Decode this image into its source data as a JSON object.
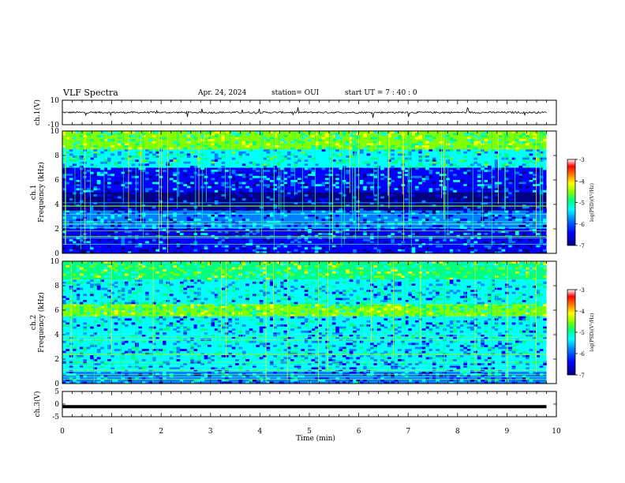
{
  "header": {
    "title": "VLF Spectra",
    "date": "Apr. 24, 2024",
    "station": "station= OUI",
    "start_time": "start  UT  =   7 : 40 : 0"
  },
  "colorbar": {
    "label": "log(PSD)(V²/Hz)",
    "ticks": [
      "-3",
      "-4",
      "-5",
      "-6",
      "-7"
    ],
    "colors": [
      "#000080",
      "#0000ff",
      "#0080ff",
      "#00ffff",
      "#00ff80",
      "#80ff00",
      "#ffff00",
      "#ff8000",
      "#ff0000",
      "#ffffff"
    ]
  },
  "chart_data": [
    {
      "type": "line",
      "panel": "ch1_waveform",
      "ylabel": "ch.1(V)",
      "ylim": [
        -10,
        10
      ],
      "y_ticks": [
        "10",
        "-10"
      ],
      "description_of_trace": "noisy waveform near 0 V",
      "x": [
        0,
        1,
        2,
        3,
        4,
        5,
        6,
        7,
        8,
        9,
        9.8
      ],
      "y": [
        0,
        0,
        0,
        0,
        0,
        0,
        0,
        0,
        0,
        0,
        0
      ]
    },
    {
      "type": "heatmap",
      "panel": "ch1_spectrogram",
      "ylabel": "ch.1\nFrequency (kHz)",
      "ylim": [
        0,
        10
      ],
      "y_ticks": [
        "0",
        "2",
        "4",
        "6",
        "8",
        "10"
      ],
      "xlim": [
        0,
        10
      ],
      "z_range": [
        -7,
        -3
      ],
      "bands": [
        {
          "f": [
            0,
            2
          ],
          "level": -6.3
        },
        {
          "f": [
            2,
            3.5
          ],
          "level": -6.1
        },
        {
          "f": [
            3.5,
            5
          ],
          "level": -6.7
        },
        {
          "f": [
            5,
            7
          ],
          "level": -6.2
        },
        {
          "f": [
            7,
            8.5
          ],
          "level": -5.6
        },
        {
          "f": [
            8.5,
            10
          ],
          "level": -5.0
        }
      ]
    },
    {
      "type": "heatmap",
      "panel": "ch2_spectrogram",
      "ylabel": "ch.2\nFrequency (kHz)",
      "ylim": [
        0,
        10
      ],
      "y_ticks": [
        "0",
        "2",
        "4",
        "6",
        "8",
        "10"
      ],
      "xlim": [
        0,
        10
      ],
      "z_range": [
        -7,
        -3
      ],
      "bands": [
        {
          "f": [
            0,
            1
          ],
          "level": -6.0
        },
        {
          "f": [
            1,
            5.5
          ],
          "level": -5.8
        },
        {
          "f": [
            5.5,
            6.5
          ],
          "level": -5.0
        },
        {
          "f": [
            6.5,
            8.5
          ],
          "level": -5.7
        },
        {
          "f": [
            8.5,
            10
          ],
          "level": -5.1
        }
      ]
    },
    {
      "type": "line",
      "panel": "ch3_waveform",
      "ylabel": "ch.3(V)",
      "ylim": [
        -5,
        5
      ],
      "y_ticks": [
        "5",
        "0",
        "-5"
      ],
      "x": [
        0,
        9.8
      ],
      "y": [
        -1,
        -1
      ]
    }
  ],
  "x_axis": {
    "label": "Time  (min)",
    "xlim": [
      0,
      10
    ],
    "ticks": [
      "0",
      "1",
      "2",
      "3",
      "4",
      "5",
      "6",
      "7",
      "8",
      "9",
      "10"
    ]
  }
}
